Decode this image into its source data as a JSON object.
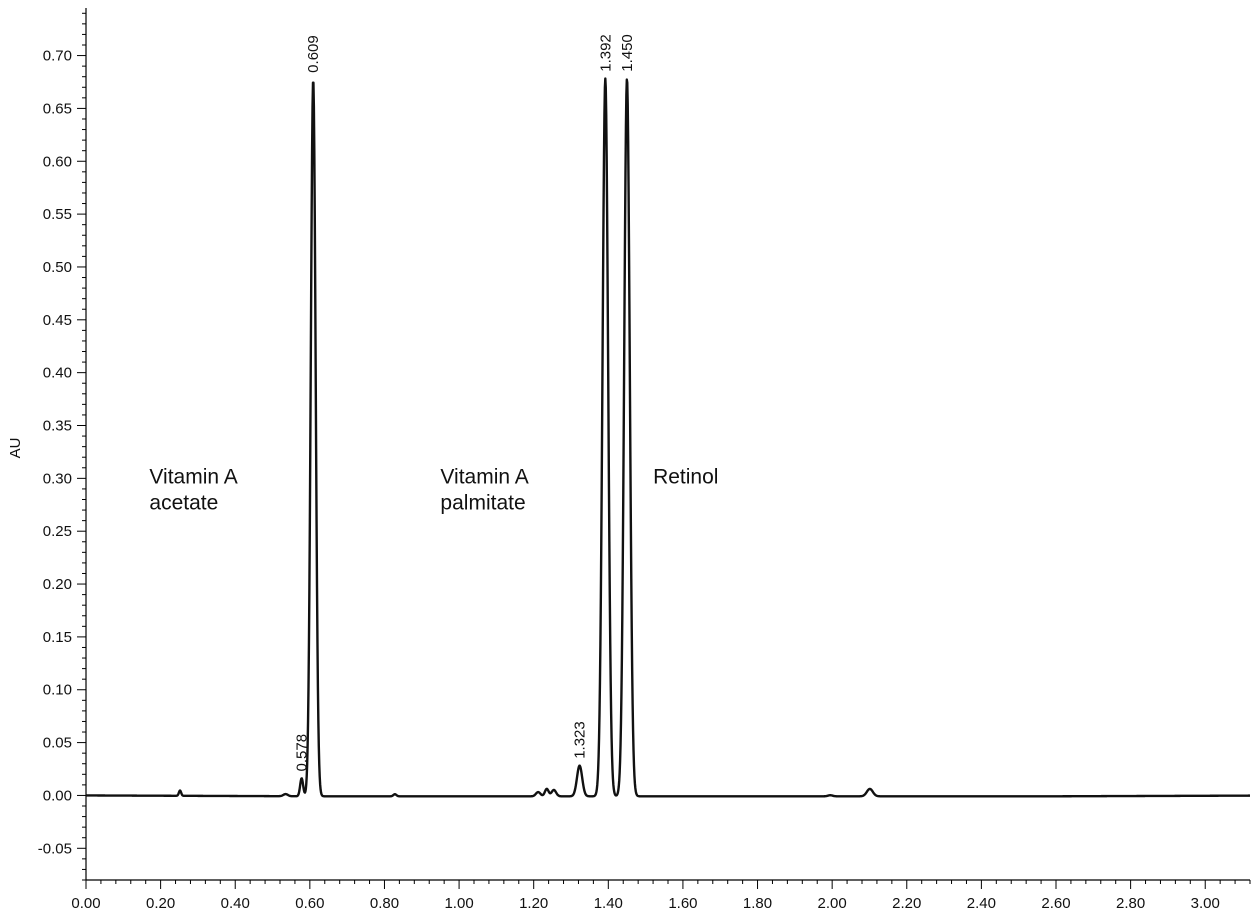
{
  "chart_data": {
    "type": "line",
    "title": "",
    "xlabel": "",
    "ylabel": "AU",
    "xlim": [
      0.0,
      3.12
    ],
    "ylim": [
      -0.08,
      0.745
    ],
    "x_ticks": [
      0.0,
      0.2,
      0.4,
      0.6,
      0.8,
      1.0,
      1.2,
      1.4,
      1.6,
      1.8,
      2.0,
      2.2,
      2.4,
      2.6,
      2.8,
      3.0
    ],
    "x_tick_labels": [
      "0.00",
      "0.20",
      "0.40",
      "0.60",
      "0.80",
      "1.00",
      "1.20",
      "1.40",
      "1.60",
      "1.80",
      "2.00",
      "2.20",
      "2.40",
      "2.60",
      "2.80",
      "3.00"
    ],
    "y_ticks": [
      -0.05,
      0.0,
      0.05,
      0.1,
      0.15,
      0.2,
      0.25,
      0.3,
      0.35,
      0.4,
      0.45,
      0.5,
      0.55,
      0.6,
      0.65,
      0.7
    ],
    "y_tick_labels": [
      "-0.05",
      "0.00",
      "0.05",
      "0.10",
      "0.15",
      "0.20",
      "0.25",
      "0.30",
      "0.35",
      "0.40",
      "0.45",
      "0.50",
      "0.55",
      "0.60",
      "0.65",
      "0.70"
    ],
    "grid": false,
    "series": [
      {
        "color": "#111111",
        "baseline": 0.0,
        "peaks": [
          {
            "rt": 0.252,
            "height": 0.005,
            "width": 0.003
          },
          {
            "rt": 0.535,
            "height": 0.002,
            "width": 0.006
          },
          {
            "rt": 0.578,
            "height": 0.017,
            "width": 0.004
          },
          {
            "rt": 0.609,
            "height": 0.678,
            "width": 0.0065
          },
          {
            "rt": 0.828,
            "height": 0.002,
            "width": 0.004
          },
          {
            "rt": 1.212,
            "height": 0.004,
            "width": 0.006
          },
          {
            "rt": 1.235,
            "height": 0.007,
            "width": 0.005
          },
          {
            "rt": 1.254,
            "height": 0.006,
            "width": 0.006
          },
          {
            "rt": 1.323,
            "height": 0.029,
            "width": 0.007
          },
          {
            "rt": 1.392,
            "height": 0.679,
            "width": 0.0075
          },
          {
            "rt": 1.45,
            "height": 0.679,
            "width": 0.0075
          },
          {
            "rt": 1.995,
            "height": 0.001,
            "width": 0.006
          },
          {
            "rt": 2.101,
            "height": 0.007,
            "width": 0.008
          }
        ]
      }
    ],
    "peak_labels": [
      {
        "text": "0.578",
        "x": 0.578,
        "y": 0.017
      },
      {
        "text": "0.609",
        "x": 0.609,
        "y": 0.678
      },
      {
        "text": "1.323",
        "x": 1.323,
        "y": 0.029
      },
      {
        "text": "1.392",
        "x": 1.392,
        "y": 0.679
      },
      {
        "text": "1.450",
        "x": 1.45,
        "y": 0.679
      }
    ],
    "annotations": [
      {
        "name": "vitamin-a-acetate",
        "lines": [
          "Vitamin A",
          "acetate"
        ],
        "x": 0.17,
        "y": 0.3
      },
      {
        "name": "vitamin-a-palmitate",
        "lines": [
          "Vitamin A",
          "palmitate"
        ],
        "x": 0.95,
        "y": 0.3
      },
      {
        "name": "retinol",
        "lines": [
          "Retinol"
        ],
        "x": 1.52,
        "y": 0.3
      }
    ]
  }
}
